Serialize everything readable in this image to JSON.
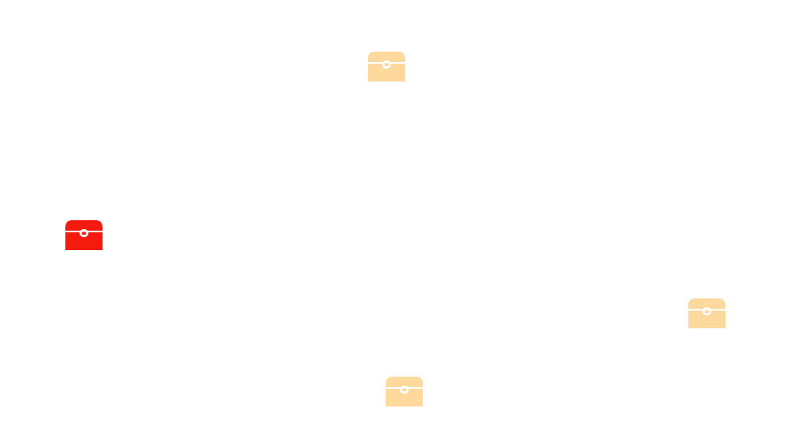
{
  "game": {
    "chests": [
      {
        "id": "chest-1",
        "state": "unopened",
        "color": "#FFD89E",
        "icon": "treasure-chest-icon"
      },
      {
        "id": "chest-2",
        "state": "selected",
        "color": "#F51A0E",
        "icon": "treasure-chest-icon"
      },
      {
        "id": "chest-3",
        "state": "unopened",
        "color": "#FFD89E",
        "icon": "treasure-chest-icon"
      },
      {
        "id": "chest-4",
        "state": "unopened",
        "color": "#FFD89E",
        "icon": "treasure-chest-icon"
      }
    ]
  },
  "colors": {
    "background": "#FFFFFF",
    "chest_default": "#FFD89E",
    "chest_selected": "#F51A0E",
    "chest_detail": "#FFFFFF"
  }
}
